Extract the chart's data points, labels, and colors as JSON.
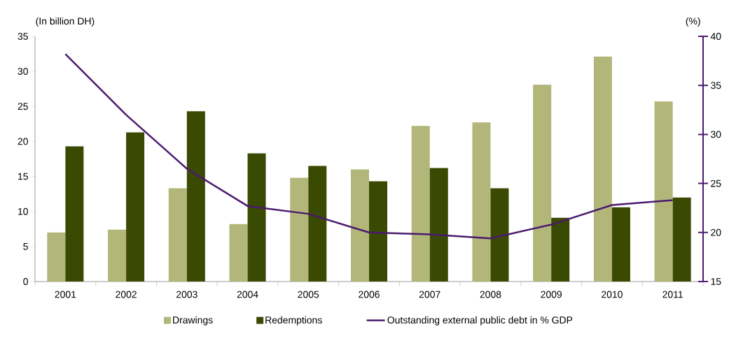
{
  "chart_data": {
    "type": "bar",
    "categories": [
      "2001",
      "2002",
      "2003",
      "2004",
      "2005",
      "2006",
      "2007",
      "2008",
      "2009",
      "2010",
      "2011"
    ],
    "series": [
      {
        "name": "Drawings",
        "color": "#b2b679",
        "values": [
          7.0,
          7.4,
          13.3,
          8.2,
          14.8,
          16.0,
          22.2,
          22.7,
          28.1,
          32.1,
          25.7
        ]
      },
      {
        "name": "Redemptions",
        "color": "#3a4a02",
        "values": [
          19.3,
          21.3,
          24.3,
          18.3,
          16.5,
          14.3,
          16.2,
          13.3,
          9.1,
          10.6,
          12.0
        ]
      },
      {
        "name": "Outstanding external public debt in % GDP",
        "type": "line",
        "axis": "y2",
        "color": "#4b1a6e",
        "values": [
          38.2,
          32.0,
          26.5,
          22.7,
          21.9,
          20.0,
          19.8,
          19.4,
          20.8,
          22.8,
          23.3
        ]
      }
    ],
    "ylabel": "(In billion DH)",
    "y2label": "(%)",
    "ylim": [
      0,
      35
    ],
    "yticks": [
      0,
      5,
      10,
      15,
      20,
      25,
      30,
      35
    ],
    "y2lim": [
      15,
      40
    ],
    "y2ticks": [
      15,
      20,
      25,
      30,
      35,
      40
    ],
    "legend": "bottom"
  }
}
